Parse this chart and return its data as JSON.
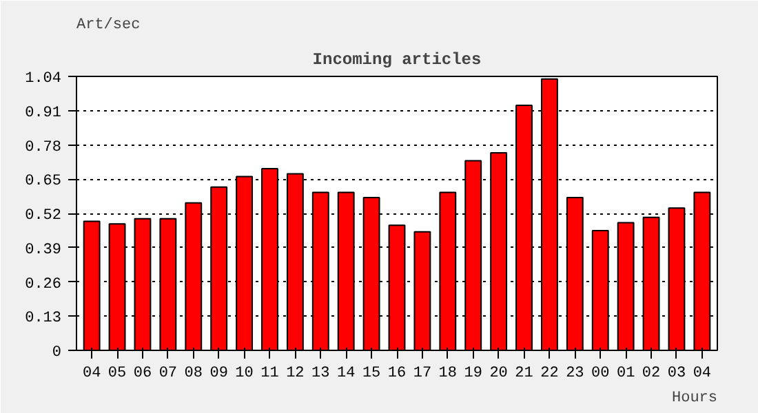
{
  "chart_data": {
    "type": "bar",
    "title": "Incoming articles",
    "ylabel": "Art/sec",
    "xlabel": "Hours",
    "categories": [
      "04",
      "05",
      "06",
      "07",
      "08",
      "09",
      "10",
      "11",
      "12",
      "13",
      "14",
      "15",
      "16",
      "17",
      "18",
      "19",
      "20",
      "21",
      "22",
      "23",
      "00",
      "01",
      "02",
      "03",
      "04"
    ],
    "values": [
      0.49,
      0.48,
      0.5,
      0.5,
      0.56,
      0.62,
      0.66,
      0.69,
      0.67,
      0.6,
      0.6,
      0.58,
      0.475,
      0.45,
      0.6,
      0.72,
      0.75,
      0.93,
      1.03,
      0.58,
      0.455,
      0.485,
      0.505,
      0.54,
      0.6
    ],
    "color": "#ff0000",
    "ylim": [
      0,
      1.04
    ],
    "yticks": [
      0,
      0.13,
      0.26,
      0.39,
      0.52,
      0.65,
      0.78,
      0.91,
      1.04
    ],
    "grid": "y",
    "line_style": "dotted"
  }
}
